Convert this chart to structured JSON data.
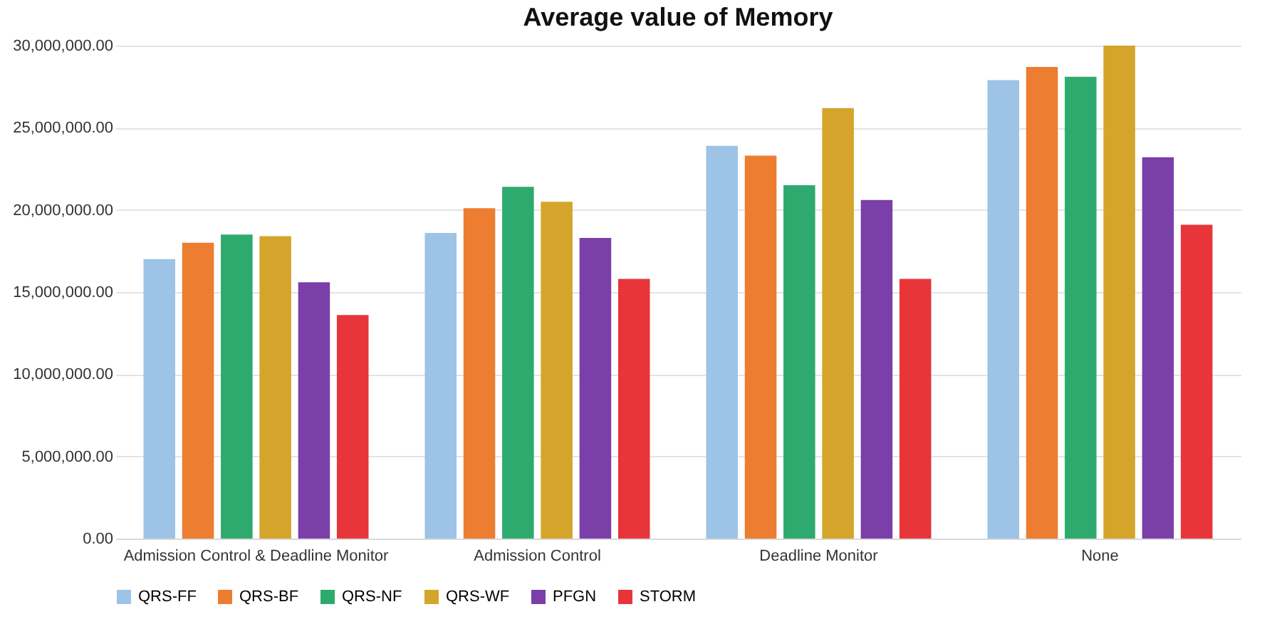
{
  "chart_data": {
    "type": "bar",
    "title": "Average value of Memory",
    "categories": [
      "Admission Control & Deadline Monitor",
      "Admission Control",
      "Deadline Monitor",
      "None"
    ],
    "series": [
      {
        "name": "QRS-FF",
        "color": "#9dc3e6",
        "values": [
          17000000,
          18600000,
          23900000,
          27900000
        ]
      },
      {
        "name": "QRS-BF",
        "color": "#ed7d31",
        "values": [
          18000000,
          20100000,
          23300000,
          28700000
        ]
      },
      {
        "name": "QRS-NF",
        "color": "#2eaa6e",
        "values": [
          18500000,
          21400000,
          21500000,
          28100000
        ]
      },
      {
        "name": "QRS-WF",
        "color": "#d4a52a",
        "values": [
          18400000,
          20500000,
          26200000,
          30000000
        ]
      },
      {
        "name": "PFGN",
        "color": "#7a3fa8",
        "values": [
          15600000,
          18300000,
          20600000,
          23200000
        ]
      },
      {
        "name": "STORM",
        "color": "#e8353a",
        "values": [
          13600000,
          15800000,
          15800000,
          19100000
        ]
      }
    ],
    "ylim": [
      0,
      30000000
    ],
    "yticks": [
      {
        "value": 0,
        "label": "0.00"
      },
      {
        "value": 5000000,
        "label": "5,000,000.00"
      },
      {
        "value": 10000000,
        "label": "10,000,000.00"
      },
      {
        "value": 15000000,
        "label": "15,000,000.00"
      },
      {
        "value": 20000000,
        "label": "20,000,000.00"
      },
      {
        "value": 25000000,
        "label": "25,000,000.00"
      },
      {
        "value": 30000000,
        "label": "30,000,000.00"
      }
    ],
    "grid": "y",
    "legend": "bottom"
  }
}
